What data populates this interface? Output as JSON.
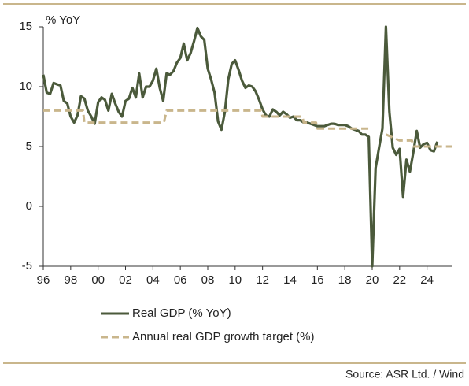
{
  "chart_data": {
    "type": "line",
    "ylabel": "% YoY",
    "source": "Source: ASR Ltd.  / Wind",
    "xlim": [
      1996,
      2025.8
    ],
    "ylim": [
      -5,
      15
    ],
    "yticks": [
      15,
      10,
      5,
      0,
      -5
    ],
    "xticks": [
      {
        "value": 1996,
        "label": "96"
      },
      {
        "value": 1998,
        "label": "98"
      },
      {
        "value": 2000,
        "label": "00"
      },
      {
        "value": 2002,
        "label": "02"
      },
      {
        "value": 2004,
        "label": "04"
      },
      {
        "value": 2006,
        "label": "06"
      },
      {
        "value": 2008,
        "label": "08"
      },
      {
        "value": 2010,
        "label": "10"
      },
      {
        "value": 2012,
        "label": "12"
      },
      {
        "value": 2014,
        "label": "14"
      },
      {
        "value": 2016,
        "label": "16"
      },
      {
        "value": 2018,
        "label": "18"
      },
      {
        "value": 2020,
        "label": "20"
      },
      {
        "value": 2022,
        "label": "22"
      },
      {
        "value": 2024,
        "label": "24"
      }
    ],
    "series": [
      {
        "name": "Real GDP (% YoY)",
        "color": "#4b5a3b",
        "dash": false,
        "x": [
          1996,
          1996.25,
          1996.5,
          1996.75,
          1997,
          1997.25,
          1997.5,
          1997.75,
          1998,
          1998.25,
          1998.5,
          1998.75,
          1999,
          1999.25,
          1999.5,
          1999.75,
          2000,
          2000.25,
          2000.5,
          2000.75,
          2001,
          2001.25,
          2001.5,
          2001.75,
          2002,
          2002.25,
          2002.5,
          2002.75,
          2003,
          2003.25,
          2003.5,
          2003.75,
          2004,
          2004.25,
          2004.5,
          2004.75,
          2005,
          2005.25,
          2005.5,
          2005.75,
          2006,
          2006.25,
          2006.5,
          2006.75,
          2007,
          2007.25,
          2007.5,
          2007.75,
          2008,
          2008.25,
          2008.5,
          2008.75,
          2009,
          2009.25,
          2009.5,
          2009.75,
          2010,
          2010.25,
          2010.5,
          2010.75,
          2011,
          2011.25,
          2011.5,
          2011.75,
          2012,
          2012.25,
          2012.5,
          2012.75,
          2013,
          2013.25,
          2013.5,
          2013.75,
          2014,
          2014.25,
          2014.5,
          2014.75,
          2015,
          2015.25,
          2015.5,
          2015.75,
          2016,
          2016.25,
          2016.5,
          2016.75,
          2017,
          2017.25,
          2017.5,
          2017.75,
          2018,
          2018.25,
          2018.5,
          2018.75,
          2019,
          2019.25,
          2019.5,
          2019.75,
          2020,
          2020.25,
          2020.5,
          2020.75,
          2021,
          2021.25,
          2021.5,
          2021.75,
          2022,
          2022.25,
          2022.5,
          2022.75,
          2023,
          2023.25,
          2023.5,
          2023.75,
          2024,
          2024.25,
          2024.5,
          2024.75
        ],
        "values": [
          11,
          9.5,
          9.4,
          10.3,
          10.2,
          10.1,
          8.8,
          8.6,
          7.5,
          7.0,
          7.6,
          9.2,
          9.0,
          8.0,
          7.5,
          6.9,
          8.7,
          9.1,
          8.9,
          8.0,
          9.4,
          8.6,
          7.9,
          7.5,
          8.8,
          9.0,
          9.9,
          9.1,
          11.1,
          9.1,
          10.0,
          10.0,
          10.5,
          11.5,
          9.9,
          8.8,
          11.1,
          11.0,
          11.3,
          12.0,
          12.4,
          13.6,
          12.2,
          12.8,
          13.8,
          14.9,
          14.2,
          13.9,
          11.5,
          10.6,
          9.5,
          7.1,
          6.4,
          7.9,
          10.6,
          11.9,
          12.2,
          11.4,
          10.5,
          9.9,
          10.1,
          10.0,
          9.6,
          8.9,
          8.1,
          7.6,
          7.5,
          8.1,
          7.9,
          7.6,
          7.9,
          7.7,
          7.4,
          7.5,
          7.2,
          7.2,
          7.0,
          7.0,
          6.9,
          6.8,
          6.7,
          6.7,
          6.7,
          6.8,
          6.9,
          6.9,
          6.8,
          6.8,
          6.8,
          6.7,
          6.5,
          6.4,
          6.3,
          6.0,
          6.0,
          5.8,
          -5,
          3.2,
          4.9,
          6.5,
          15,
          7.9,
          4.9,
          4.3,
          4.8,
          0.8,
          3.9,
          2.9,
          4.5,
          6.3,
          4.9,
          5.2,
          5.3,
          4.7,
          4.6,
          5.4
        ]
      },
      {
        "name": "Annual real GDP growth target (%)",
        "color": "#c9b68c",
        "dash": true,
        "x": [
          1996,
          1998.9,
          1999,
          2004.8,
          2005,
          2011.9,
          2012,
          2014.9,
          2015,
          2015.9,
          2016,
          2019.9,
          2020,
          2021,
          2022,
          2022.9,
          2023,
          2025.8
        ],
        "values": [
          8,
          8,
          7,
          7,
          8,
          8,
          7.5,
          7.5,
          7,
          7,
          6.5,
          6.5,
          null,
          6,
          5.5,
          5.5,
          5,
          5
        ]
      }
    ]
  }
}
